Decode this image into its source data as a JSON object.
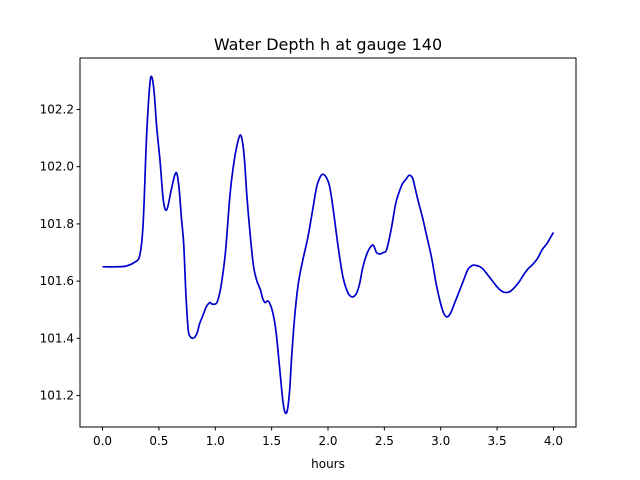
{
  "chart_data": {
    "type": "line",
    "title": "Water Depth h at gauge 140",
    "xlabel": "hours",
    "ylabel": "",
    "xlim": [
      -0.2,
      4.2
    ],
    "ylim": [
      101.09,
      102.38
    ],
    "xticks": [
      0.0,
      0.5,
      1.0,
      1.5,
      2.0,
      2.5,
      3.0,
      3.5,
      4.0
    ],
    "xtick_labels": [
      "0.0",
      "0.5",
      "1.0",
      "1.5",
      "2.0",
      "2.5",
      "3.0",
      "3.5",
      "4.0"
    ],
    "yticks": [
      101.2,
      101.4,
      101.6,
      101.8,
      102.0,
      102.2
    ],
    "ytick_labels": [
      "101.2",
      "101.4",
      "101.6",
      "101.8",
      "102.0",
      "102.2"
    ],
    "grid": false,
    "colors": {
      "line": "#0000cc"
    },
    "series": [
      {
        "x": [
          0.0,
          0.1,
          0.2,
          0.28,
          0.33,
          0.36,
          0.39,
          0.42,
          0.44,
          0.46,
          0.48,
          0.51,
          0.54,
          0.57,
          0.61,
          0.64,
          0.66,
          0.68,
          0.7,
          0.72,
          0.74,
          0.76,
          0.78,
          0.8,
          0.82,
          0.84,
          0.86,
          0.88,
          0.9,
          0.92,
          0.95,
          0.97,
          1.0,
          1.02,
          1.05,
          1.09,
          1.13,
          1.16,
          1.19,
          1.22,
          1.24,
          1.26,
          1.28,
          1.31,
          1.34,
          1.37,
          1.4,
          1.42,
          1.44,
          1.46,
          1.48,
          1.51,
          1.54,
          1.57,
          1.6,
          1.62,
          1.64,
          1.66,
          1.68,
          1.71,
          1.74,
          1.78,
          1.82,
          1.86,
          1.9,
          1.94,
          1.97,
          2.0,
          2.02,
          2.05,
          2.09,
          2.13,
          2.17,
          2.21,
          2.25,
          2.28,
          2.31,
          2.35,
          2.39,
          2.41,
          2.43,
          2.46,
          2.49,
          2.52,
          2.56,
          2.6,
          2.63,
          2.66,
          2.69,
          2.72,
          2.75,
          2.77,
          2.8,
          2.84,
          2.88,
          2.92,
          2.96,
          3.0,
          3.03,
          3.06,
          3.09,
          3.12,
          3.16,
          3.2,
          3.24,
          3.28,
          3.31,
          3.35,
          3.38,
          3.42,
          3.46,
          3.5,
          3.54,
          3.58,
          3.62,
          3.66,
          3.7,
          3.74,
          3.78,
          3.82,
          3.86,
          3.9,
          3.94,
          3.97,
          4.0
        ],
        "values": [
          101.65,
          101.65,
          101.652,
          101.665,
          101.69,
          101.8,
          102.1,
          102.29,
          102.31,
          102.25,
          102.14,
          102.02,
          101.88,
          101.85,
          101.92,
          101.97,
          101.975,
          101.92,
          101.82,
          101.73,
          101.55,
          101.43,
          101.405,
          101.4,
          101.405,
          101.42,
          101.45,
          101.47,
          101.49,
          101.51,
          101.525,
          101.52,
          101.52,
          101.53,
          101.58,
          101.7,
          101.9,
          102.0,
          102.07,
          102.11,
          102.09,
          102.02,
          101.9,
          101.76,
          101.65,
          101.6,
          101.57,
          101.54,
          101.525,
          101.53,
          101.525,
          101.49,
          101.42,
          101.3,
          101.18,
          101.14,
          101.15,
          101.22,
          101.35,
          101.5,
          101.6,
          101.68,
          101.75,
          101.84,
          101.93,
          101.97,
          101.97,
          101.95,
          101.92,
          101.84,
          101.72,
          101.62,
          101.565,
          101.545,
          101.555,
          101.59,
          101.65,
          101.7,
          101.725,
          101.72,
          101.7,
          101.695,
          101.7,
          101.71,
          101.78,
          101.87,
          101.91,
          101.94,
          101.955,
          101.97,
          101.96,
          101.93,
          101.88,
          101.82,
          101.75,
          101.68,
          101.59,
          101.52,
          101.485,
          101.475,
          101.49,
          101.52,
          101.56,
          101.6,
          101.64,
          101.655,
          101.655,
          101.65,
          101.64,
          101.62,
          101.6,
          101.58,
          101.565,
          101.56,
          101.565,
          101.58,
          101.6,
          101.625,
          101.645,
          101.66,
          101.68,
          101.71,
          101.73,
          101.75,
          101.77
        ]
      }
    ]
  }
}
